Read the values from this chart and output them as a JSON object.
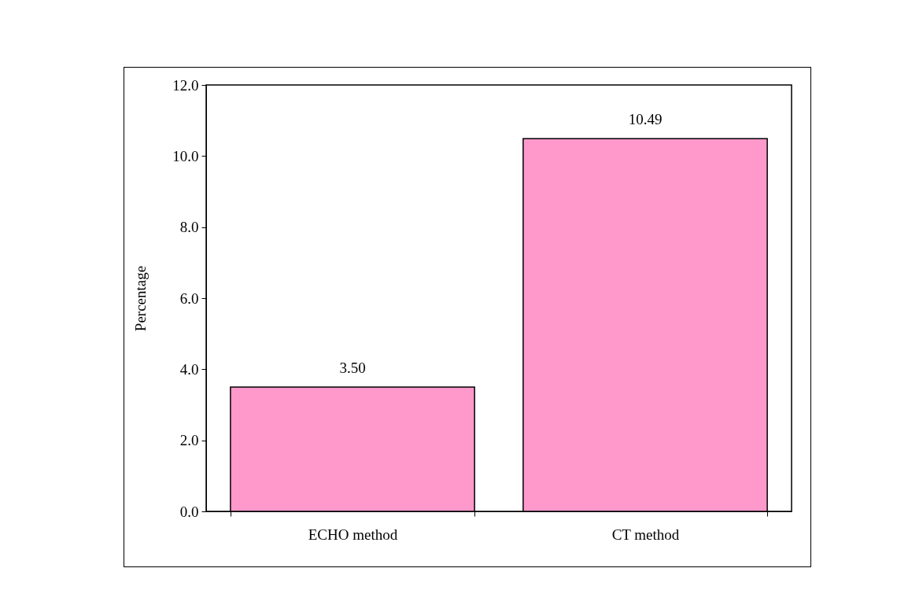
{
  "chart_data": {
    "type": "bar",
    "ylabel": "Percentage",
    "categories": [
      "ECHO method",
      "CT method"
    ],
    "values": [
      3.5,
      10.49
    ],
    "value_labels": [
      "3.50",
      "10.49"
    ],
    "color": "#ff99cc",
    "ylim": [
      0,
      12
    ],
    "yticks": [
      {
        "value": 0,
        "label": "0.0"
      },
      {
        "value": 2,
        "label": "2.0"
      },
      {
        "value": 4,
        "label": "4.0"
      },
      {
        "value": 6,
        "label": "6.0"
      },
      {
        "value": 8,
        "label": "8.0"
      },
      {
        "value": 10,
        "label": "10.0"
      },
      {
        "value": 12,
        "label": "12.0"
      }
    ],
    "grid": false
  }
}
